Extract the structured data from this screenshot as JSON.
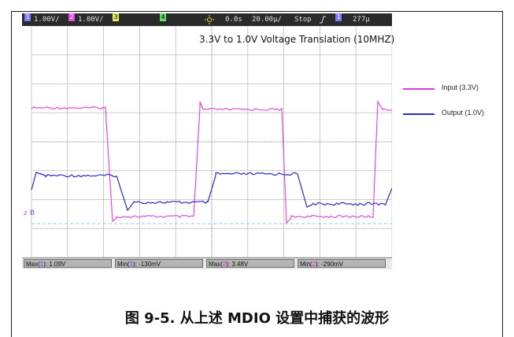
{
  "scope": {
    "ch1_label": "1",
    "ch1_scale": "1.00V/",
    "ch2_label": "2",
    "ch2_scale": "1.00V/",
    "ch3_label": "3",
    "ch4_label": "4",
    "trigger_icon": "trigger-icon",
    "time_offset": "0.0s",
    "time_scale": "20.00µ/",
    "run_state": "Stop",
    "trigger_edge_icon": "rising-edge-icon",
    "trigger_channel": "1",
    "trigger_level": "277µ",
    "title": "3.3V to 1.0V Voltage Translation (10MHZ)",
    "ground_marker": "B",
    "measurements": [
      {
        "label": "Max(",
        "ch": "1",
        "value": "): 1.09V",
        "ch_color": "#6a4aff"
      },
      {
        "label": "Min(",
        "ch": "1",
        "value": "): -130mV",
        "ch_color": "#6a4aff"
      },
      {
        "label": "Max(",
        "ch": "2",
        "value": "): 3.48V",
        "ch_color": "#d93ad9"
      },
      {
        "label": "Min(",
        "ch": "2",
        "value": "): -290mV",
        "ch_color": "#d93ad9"
      }
    ]
  },
  "legend": [
    {
      "label": "Input (3.3V)",
      "color": "#d93ad9"
    },
    {
      "label": "Output (1.0V)",
      "color": "#2b2bbf"
    }
  ],
  "caption": "图 9-5. 从上述 MDIO 设置中捕获的波形",
  "colors": {
    "input_trace": "#e04ae0",
    "output_trace": "#2b2bbf",
    "reference_line": "#7fd0ff",
    "grid": "#bcbcbc"
  }
}
